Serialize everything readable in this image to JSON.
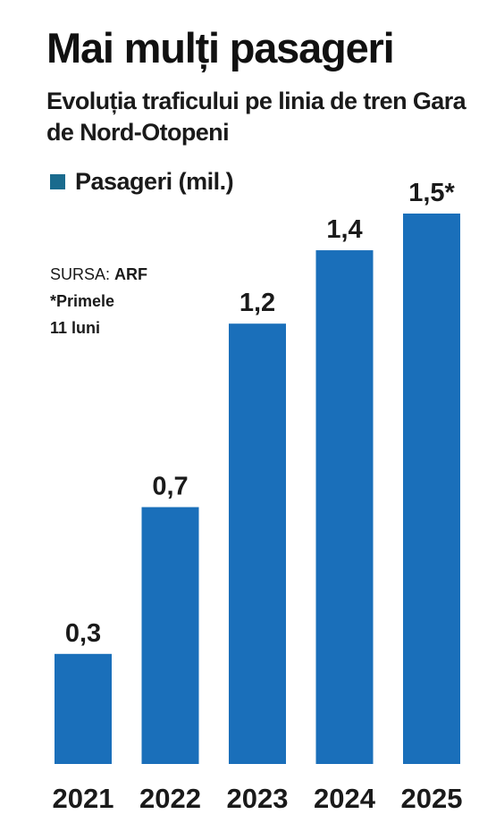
{
  "header": {
    "title": "Mai mulți pasageri",
    "subtitle": "Evoluția traficului pe linia de tren Gara de Nord-Otopeni"
  },
  "legend": {
    "label": "Pasageri (mil.)"
  },
  "source": {
    "prefix": "SURSA: ",
    "name": "ARF",
    "note_line1": "*Primele",
    "note_line2": "11 luni"
  },
  "colors": {
    "bar": "#1a6fba",
    "legend_swatch": "#1a6b8e"
  },
  "chart_data": {
    "type": "bar",
    "title": "Mai mulți pasageri",
    "subtitle": "Evoluția traficului pe linia de tren Gara de Nord-Otopeni",
    "categories": [
      "2021",
      "2022",
      "2023",
      "2024",
      "2025"
    ],
    "series": [
      {
        "name": "Pasageri (mil.)",
        "values": [
          0.3,
          0.7,
          1.2,
          1.4,
          1.5
        ]
      }
    ],
    "data_labels": [
      "0,3",
      "0,7",
      "1,2",
      "1,4",
      "1,5*"
    ],
    "xlabel": "",
    "ylabel": "",
    "ylim": [
      0,
      1.5
    ],
    "grid": false,
    "legend_position": "top-left"
  }
}
